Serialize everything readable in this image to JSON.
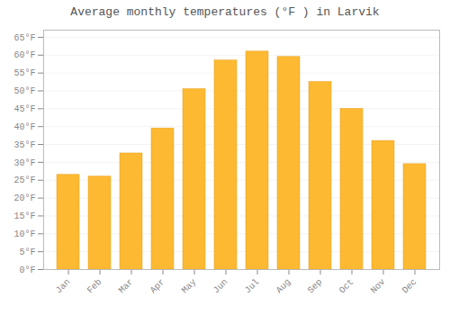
{
  "chart_data": {
    "type": "bar",
    "title": "Average monthly temperatures (°F ) in Larvik",
    "categories": [
      "Jan",
      "Feb",
      "Mar",
      "Apr",
      "May",
      "Jun",
      "Jul",
      "Aug",
      "Sep",
      "Oct",
      "Nov",
      "Dec"
    ],
    "values": [
      26.5,
      26.0,
      32.5,
      39.5,
      50.5,
      58.5,
      61.0,
      59.5,
      52.5,
      45.0,
      36.0,
      29.5
    ],
    "color": "#FDB931",
    "ylim": [
      0,
      67
    ],
    "yticks": [
      {
        "value": 0,
        "label": "0°F"
      },
      {
        "value": 5,
        "label": "5°F"
      },
      {
        "value": 10,
        "label": "10°F"
      },
      {
        "value": 15,
        "label": "15°F"
      },
      {
        "value": 20,
        "label": "20°F"
      },
      {
        "value": 25,
        "label": "25°F"
      },
      {
        "value": 30,
        "label": "30°F"
      },
      {
        "value": 35,
        "label": "35°F"
      },
      {
        "value": 40,
        "label": "40°F"
      },
      {
        "value": 45,
        "label": "45°F"
      },
      {
        "value": 50,
        "label": "50°F"
      },
      {
        "value": 55,
        "label": "55°F"
      },
      {
        "value": 60,
        "label": "60°F"
      },
      {
        "value": 65,
        "label": "65°F"
      }
    ],
    "grid": true
  }
}
